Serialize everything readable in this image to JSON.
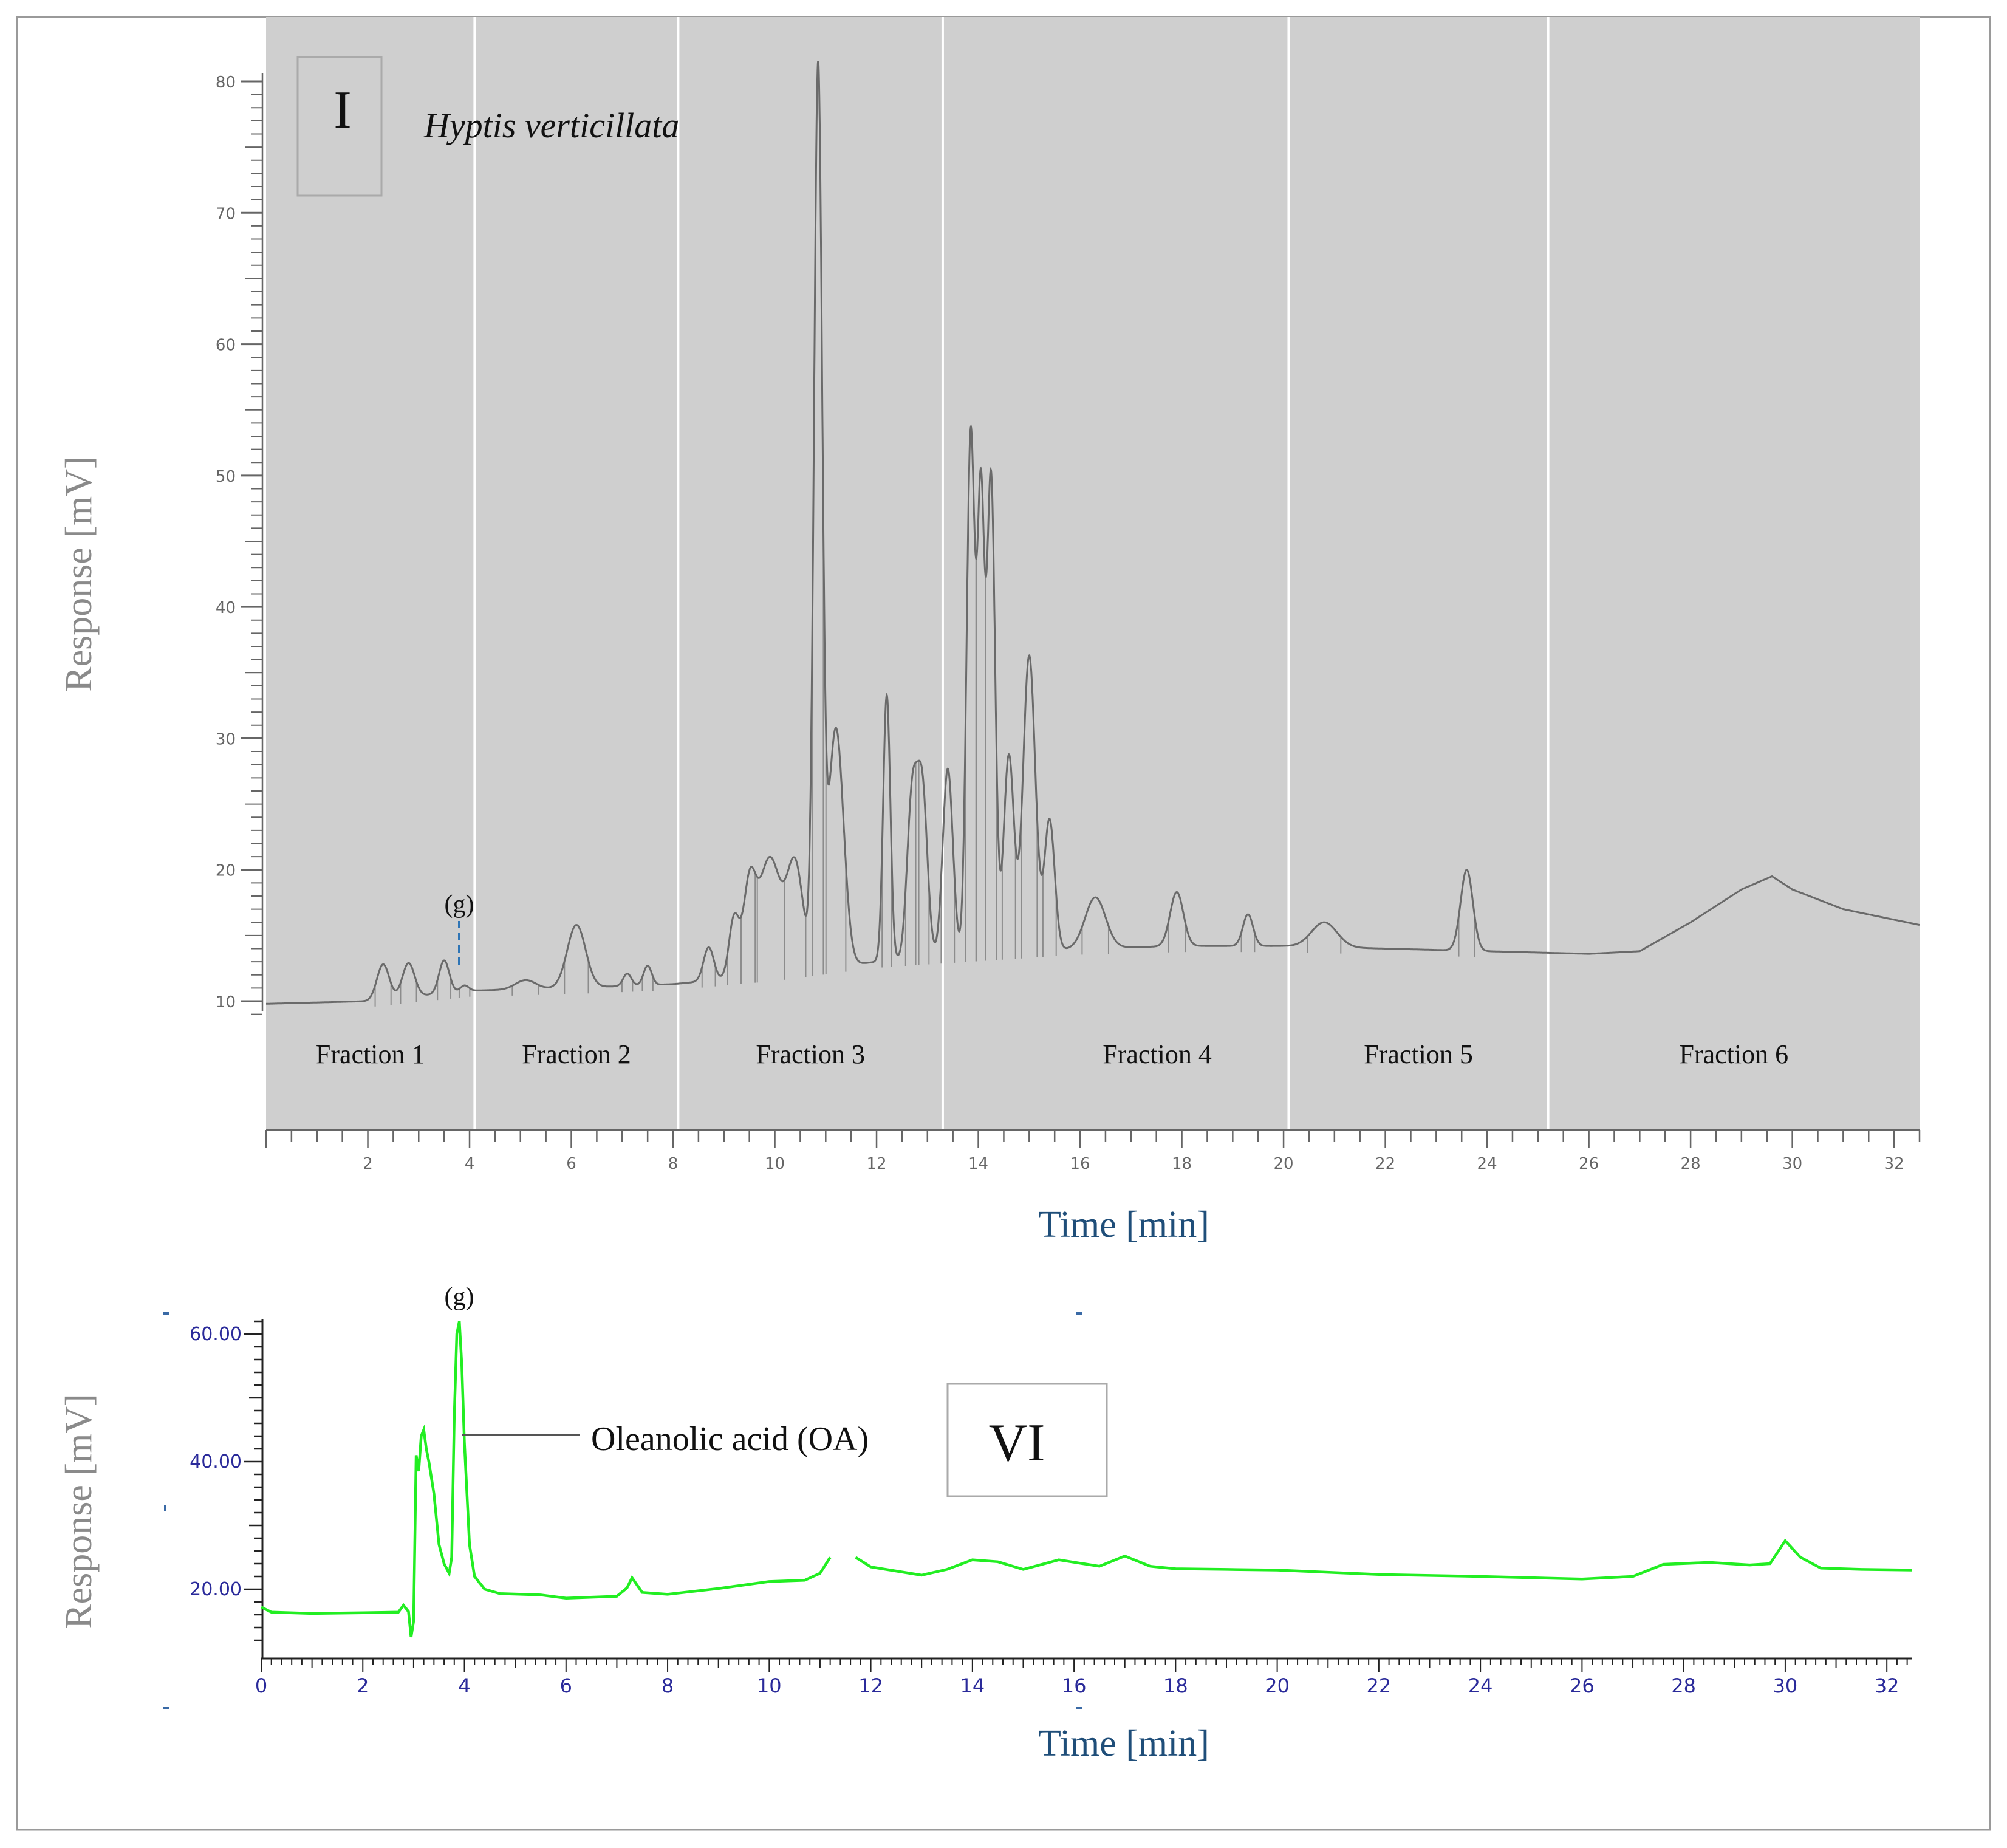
{
  "figure": {
    "frame_color": "#9a9a9a"
  },
  "panel_I": {
    "panel_label": "I",
    "species": "Hyptis verticillata",
    "ylabel": "Response [mV]",
    "xlabel": "Time [min]",
    "peak_marker": "(g)",
    "fractions": [
      {
        "label": "Fraction 1",
        "start": 0.0,
        "end": 4.1
      },
      {
        "label": "Fraction 2",
        "start": 4.1,
        "end": 8.1
      },
      {
        "label": "Fraction 3",
        "start": 8.1,
        "end": 13.3
      },
      {
        "label": "Fraction 4",
        "start": 13.3,
        "end": 20.1
      },
      {
        "label": "Fraction 5",
        "start": 20.1,
        "end": 25.2
      },
      {
        "label": "Fraction 6",
        "start": 25.2,
        "end": 32.5
      }
    ],
    "colors": {
      "background": "#cfcfcf",
      "trace": "#6a6a6a",
      "ticks": "#666666",
      "axis_title": "#8a8a8a",
      "xlabel": "#1f4e79",
      "marker": "#2e75b6"
    }
  },
  "panel_VI": {
    "panel_label": "VI",
    "ylabel": "Response [mV]",
    "xlabel": "Time [min]",
    "peak_marker": "(g)",
    "annotation": "Oleanolic acid (OA)",
    "colors": {
      "trace": "#22ee22",
      "ticks": "#2a2a9a",
      "axis": "#222222",
      "axis_title": "#8a8a8a",
      "xlabel": "#1f4e79"
    }
  },
  "chart_data": [
    {
      "type": "line",
      "title": "",
      "xlabel": "Time [min]",
      "ylabel": "Response [mV]",
      "xlim": [
        0,
        32.5
      ],
      "ylim": [
        1,
        81
      ],
      "x_ticks": [
        2,
        4,
        6,
        8,
        10,
        12,
        14,
        16,
        18,
        20,
        22,
        24,
        26,
        28,
        30,
        32
      ],
      "y_ticks": [
        10,
        20,
        30,
        40,
        50,
        60,
        70,
        80
      ],
      "grid": false,
      "series": [
        {
          "baseline": [
            [
              0,
              9.8
            ],
            [
              2,
              10
            ],
            [
              4,
              10.8
            ],
            [
              6,
              11
            ],
            [
              8,
              11.3
            ],
            [
              10,
              12
            ],
            [
              12,
              13
            ],
            [
              14,
              13.5
            ],
            [
              16,
              14
            ],
            [
              18,
              14.2
            ],
            [
              20,
              14.2
            ],
            [
              22,
              14
            ],
            [
              24,
              13.8
            ],
            [
              26,
              13.6
            ],
            [
              27,
              13.8
            ],
            [
              28,
              16
            ],
            [
              29,
              18.5
            ],
            [
              29.6,
              19.5
            ],
            [
              30,
              18.5
            ],
            [
              31,
              17
            ],
            [
              32.5,
              15.8
            ]
          ],
          "peaks": [
            {
              "x": 2.3,
              "height": 12.8,
              "width": 0.12
            },
            {
              "x": 2.8,
              "height": 12.9,
              "width": 0.12
            },
            {
              "x": 3.5,
              "height": 13.1,
              "width": 0.1
            },
            {
              "x": 3.9,
              "height": 11.2,
              "width": 0.08
            },
            {
              "x": 5.1,
              "height": 11.6,
              "width": 0.2
            },
            {
              "x": 6.1,
              "height": 15.8,
              "width": 0.18
            },
            {
              "x": 7.1,
              "height": 12.1,
              "width": 0.08
            },
            {
              "x": 7.5,
              "height": 12.7,
              "width": 0.08
            },
            {
              "x": 8.7,
              "height": 14.1,
              "width": 0.1
            },
            {
              "x": 9.2,
              "height": 16.3,
              "width": 0.1
            },
            {
              "x": 9.5,
              "height": 18.2,
              "width": 0.12
            },
            {
              "x": 9.9,
              "height": 20.9,
              "width": 0.22
            },
            {
              "x": 10.4,
              "height": 20.2,
              "width": 0.16
            },
            {
              "x": 10.85,
              "height": 80.2,
              "width": 0.08
            },
            {
              "x": 11.2,
              "height": 30.8,
              "width": 0.15
            },
            {
              "x": 12.2,
              "height": 33.3,
              "width": 0.07
            },
            {
              "x": 12.7,
              "height": 25.4,
              "width": 0.1
            },
            {
              "x": 12.9,
              "height": 25.8,
              "width": 0.1
            },
            {
              "x": 13.4,
              "height": 27.7,
              "width": 0.1
            },
            {
              "x": 13.85,
              "height": 53.1,
              "width": 0.08
            },
            {
              "x": 14.05,
              "height": 47.2,
              "width": 0.07
            },
            {
              "x": 14.25,
              "height": 49.8,
              "width": 0.08
            },
            {
              "x": 14.6,
              "height": 28.7,
              "width": 0.1
            },
            {
              "x": 15.0,
              "height": 36.3,
              "width": 0.12
            },
            {
              "x": 15.4,
              "height": 23.8,
              "width": 0.1
            },
            {
              "x": 16.3,
              "height": 17.9,
              "width": 0.2
            },
            {
              "x": 17.9,
              "height": 18.3,
              "width": 0.13
            },
            {
              "x": 19.3,
              "height": 16.6,
              "width": 0.1
            },
            {
              "x": 20.8,
              "height": 16.0,
              "width": 0.25
            },
            {
              "x": 23.6,
              "height": 20.0,
              "width": 0.12
            }
          ]
        }
      ]
    },
    {
      "type": "line",
      "title": "",
      "xlabel": "Time [min]",
      "ylabel": "Response [mV]",
      "xlim": [
        0,
        32.5
      ],
      "ylim": [
        10,
        63
      ],
      "x_ticks": [
        0,
        2,
        4,
        6,
        8,
        10,
        12,
        14,
        16,
        18,
        20,
        22,
        24,
        26,
        28,
        30,
        32
      ],
      "y_ticks": [
        20.0,
        40.0,
        60.0
      ],
      "y_tick_labels": [
        "20.00",
        "40.00",
        "60.00"
      ],
      "grid": false,
      "series": [
        {
          "points": [
            [
              0,
              17.2
            ],
            [
              0.2,
              16.4
            ],
            [
              1,
              16.2
            ],
            [
              2,
              16.3
            ],
            [
              2.7,
              16.4
            ],
            [
              2.8,
              17.5
            ],
            [
              2.9,
              16.5
            ],
            [
              2.95,
              12.5
            ],
            [
              3.0,
              15
            ],
            [
              3.05,
              41
            ],
            [
              3.1,
              38.5
            ],
            [
              3.15,
              44
            ],
            [
              3.2,
              45
            ],
            [
              3.25,
              42
            ],
            [
              3.3,
              40
            ],
            [
              3.4,
              35
            ],
            [
              3.5,
              27
            ],
            [
              3.6,
              24
            ],
            [
              3.7,
              22.5
            ],
            [
              3.75,
              25
            ],
            [
              3.8,
              47
            ],
            [
              3.85,
              60
            ],
            [
              3.9,
              62
            ],
            [
              3.95,
              55
            ],
            [
              4.0,
              43
            ],
            [
              4.1,
              27
            ],
            [
              4.2,
              22
            ],
            [
              4.4,
              20
            ],
            [
              4.7,
              19.3
            ],
            [
              5.5,
              19.1
            ],
            [
              6,
              18.6
            ],
            [
              7.0,
              18.9
            ],
            [
              7.2,
              20.2
            ],
            [
              7.3,
              21.8
            ],
            [
              7.5,
              19.5
            ],
            [
              8,
              19.2
            ],
            [
              9,
              20.1
            ],
            [
              10,
              21.2
            ],
            [
              10.7,
              21.4
            ],
            [
              11.0,
              22.5
            ],
            [
              11.2,
              25
            ],
            [
              11.2,
              null
            ],
            [
              11.7,
              null
            ],
            [
              11.7,
              25
            ],
            [
              12,
              23.5
            ],
            [
              13,
              22.2
            ],
            [
              13.5,
              23.1
            ],
            [
              14,
              24.6
            ],
            [
              14.5,
              24.3
            ],
            [
              15,
              23.1
            ],
            [
              15.7,
              24.6
            ],
            [
              16.5,
              23.6
            ],
            [
              17,
              25.2
            ],
            [
              17.5,
              23.6
            ],
            [
              18,
              23.2
            ],
            [
              19,
              23.1
            ],
            [
              20,
              23.0
            ],
            [
              22,
              22.3
            ],
            [
              24,
              22.0
            ],
            [
              26,
              21.6
            ],
            [
              27,
              22.0
            ],
            [
              27.6,
              23.9
            ],
            [
              28.5,
              24.2
            ],
            [
              29.3,
              23.8
            ],
            [
              29.7,
              24
            ],
            [
              30.0,
              27.6
            ],
            [
              30.3,
              25
            ],
            [
              30.7,
              23.3
            ],
            [
              31.5,
              23.1
            ],
            [
              32.5,
              23.0
            ]
          ]
        }
      ]
    }
  ]
}
